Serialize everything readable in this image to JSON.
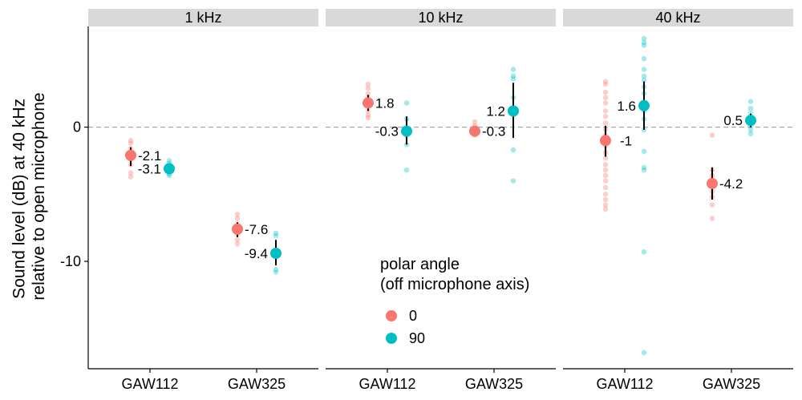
{
  "chart_data": {
    "type": "scatter",
    "facet_variable": "frequency",
    "facets": [
      "1 kHz",
      "10 kHz",
      "40 kHz"
    ],
    "categories": [
      "GAW112",
      "GAW325"
    ],
    "ylabel": "Sound level (dB) at 40 kHz\nrelative to open microphone",
    "xlabel": "",
    "ylim": [
      -18,
      7.5
    ],
    "yticks": [
      0,
      -10
    ],
    "reference_line": 0,
    "grid": false,
    "legend": {
      "title": "polar angle\n(off microphone axis)",
      "placement": "inside, middle",
      "entries": [
        {
          "label": "0",
          "color": "#F8766D"
        },
        {
          "label": "90",
          "color": "#00BFC4"
        }
      ]
    },
    "series": [
      {
        "angle": "0",
        "color": "#F8766D",
        "summary": [
          {
            "facet": "1 kHz",
            "category": "GAW112",
            "mean": -2.1,
            "lo": -2.9,
            "hi": -1.5,
            "label": "-2.1"
          },
          {
            "facet": "1 kHz",
            "category": "GAW325",
            "mean": -7.6,
            "lo": -8.2,
            "hi": -7.1,
            "label": "-7.6"
          },
          {
            "facet": "10 kHz",
            "category": "GAW112",
            "mean": 1.8,
            "lo": 1.2,
            "hi": 2.4,
            "label": "1.8"
          },
          {
            "facet": "10 kHz",
            "category": "GAW325",
            "mean": -0.3,
            "lo": -0.5,
            "hi": -0.1,
            "label": "-0.3"
          },
          {
            "facet": "40 kHz",
            "category": "GAW112",
            "mean": -1.0,
            "lo": -2.2,
            "hi": 0.1,
            "label": "-1"
          },
          {
            "facet": "40 kHz",
            "category": "GAW325",
            "mean": -4.2,
            "lo": -5.4,
            "hi": -3.0,
            "label": "-4.2"
          }
        ],
        "raw": [
          {
            "facet": "1 kHz",
            "category": "GAW112",
            "values": [
              -1.0,
              -1.2,
              -1.6,
              -2.0,
              -2.4,
              -2.8,
              -3.4,
              -3.7
            ]
          },
          {
            "facet": "1 kHz",
            "category": "GAW325",
            "values": [
              -6.5,
              -6.8,
              -7.2,
              -7.6,
              -8.0,
              -8.4,
              -8.7
            ]
          },
          {
            "facet": "10 kHz",
            "category": "GAW112",
            "values": [
              3.2,
              2.9,
              2.5,
              2.2,
              1.6,
              1.2,
              0.9,
              0.7
            ]
          },
          {
            "facet": "10 kHz",
            "category": "GAW325",
            "values": [
              0.4,
              0.1,
              -0.2,
              -0.4,
              -0.6
            ]
          },
          {
            "facet": "40 kHz",
            "category": "GAW112",
            "values": [
              3.4,
              3.2,
              2.6,
              2.2,
              1.8,
              1.2,
              0.8,
              0.3,
              -0.2,
              -0.6,
              -1.0,
              -1.4,
              -1.9,
              -2.3,
              -2.8,
              -3.2,
              -3.6,
              -4.0,
              -4.5,
              -5.0,
              -5.4,
              -5.8,
              -6.1
            ]
          },
          {
            "facet": "40 kHz",
            "category": "GAW325",
            "values": [
              -0.6,
              -3.2,
              -3.6,
              -4.0,
              -4.4,
              -4.8,
              -5.2,
              -5.8,
              -6.8
            ]
          }
        ]
      },
      {
        "angle": "90",
        "color": "#00BFC4",
        "summary": [
          {
            "facet": "1 kHz",
            "category": "GAW112",
            "mean": -3.1,
            "lo": -3.4,
            "hi": -2.8,
            "label": "-3.1"
          },
          {
            "facet": "1 kHz",
            "category": "GAW325",
            "mean": -9.4,
            "lo": -10.3,
            "hi": -8.4,
            "label": "-9.4"
          },
          {
            "facet": "10 kHz",
            "category": "GAW112",
            "mean": -0.3,
            "lo": -1.3,
            "hi": 0.8,
            "label": "-0.3"
          },
          {
            "facet": "10 kHz",
            "category": "GAW325",
            "mean": 1.2,
            "lo": -0.8,
            "hi": 3.3,
            "label": "1.2"
          },
          {
            "facet": "40 kHz",
            "category": "GAW112",
            "mean": 1.6,
            "lo": -0.2,
            "hi": 3.4,
            "label": "1.6"
          },
          {
            "facet": "40 kHz",
            "category": "GAW325",
            "mean": 0.5,
            "lo": 0.0,
            "hi": 1.0,
            "label": "0.5"
          }
        ],
        "raw": [
          {
            "facet": "1 kHz",
            "category": "GAW112",
            "values": [
              -2.5,
              -2.7,
              -2.9,
              -3.1,
              -3.3,
              -3.5,
              -3.6
            ]
          },
          {
            "facet": "1 kHz",
            "category": "GAW325",
            "values": [
              -7.9,
              -8.1,
              -10.6,
              -10.8
            ]
          },
          {
            "facet": "10 kHz",
            "category": "GAW112",
            "values": [
              1.8,
              0.6,
              -0.6,
              -1.3,
              -3.2
            ]
          },
          {
            "facet": "10 kHz",
            "category": "GAW325",
            "values": [
              4.3,
              3.8,
              3.6,
              2.2,
              -1.7,
              -4.0
            ]
          },
          {
            "facet": "40 kHz",
            "category": "GAW112",
            "values": [
              6.6,
              6.3,
              6.1,
              5.1,
              4.3,
              3.8,
              3.5,
              3.0,
              2.5,
              1.8,
              1.2,
              0.6,
              -0.2,
              -1.8,
              -3.0,
              -3.2,
              -9.3,
              -16.8
            ]
          },
          {
            "facet": "40 kHz",
            "category": "GAW325",
            "values": [
              1.9,
              1.4,
              1.0,
              0.7,
              0.4,
              0.1,
              -0.2,
              -0.5
            ]
          }
        ]
      }
    ]
  }
}
